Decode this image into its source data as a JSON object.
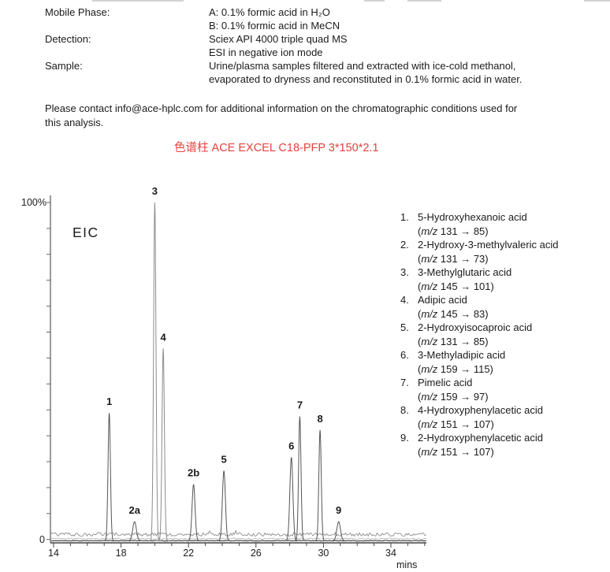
{
  "specs": {
    "rows": [
      {
        "label": "Mobile Phase:",
        "line1": "A: 0.1% formic acid in H₂O",
        "line2": "B: 0.1% formic acid in MeCN"
      },
      {
        "label": "Detection:",
        "line1": "Sciex API 4000 triple quad MS",
        "line2": "ESI in negative ion mode"
      },
      {
        "label": "Sample:",
        "line1": "Urine/plasma samples filtered and extracted with ice-cold methanol,",
        "line2": "evaporated to dryness and reconstituted in 0.1% formic acid in water."
      }
    ]
  },
  "contact_note": {
    "line1": "Please contact info@ace-hplc.com for additional information on the  chromatographic conditions used for",
    "line2": "this analysis."
  },
  "column_title": {
    "text": "色谱柱 ACE EXCEL C18-PFP 3*150*2.1",
    "color": "#e5433e"
  },
  "chart_data": {
    "type": "line",
    "title": "EIC",
    "xlabel": "mins",
    "y_top_label": "100%",
    "y_bottom_label": "0",
    "xlim": [
      14,
      36.1
    ],
    "ylim_percent": [
      0,
      100
    ],
    "x_major_ticks": [
      14,
      18,
      22,
      26,
      30,
      34
    ],
    "x_minor_tick_interval_mins": 1,
    "grid": false,
    "baseline_noise_percent": 2,
    "peaks": [
      {
        "label": "1",
        "rt_min": 17.3,
        "height_percent": 38
      },
      {
        "label": "2a",
        "rt_min": 18.8,
        "height_percent": 6
      },
      {
        "label": "3",
        "rt_min": 20.0,
        "height_percent": 100
      },
      {
        "label": "4",
        "rt_min": 20.5,
        "height_percent": 57
      },
      {
        "label": "2b",
        "rt_min": 22.3,
        "height_percent": 17
      },
      {
        "label": "5",
        "rt_min": 24.1,
        "height_percent": 21
      },
      {
        "label": "6",
        "rt_min": 28.1,
        "height_percent": 25
      },
      {
        "label": "7",
        "rt_min": 28.6,
        "height_percent": 37
      },
      {
        "label": "8",
        "rt_min": 29.8,
        "height_percent": 33
      },
      {
        "label": "9",
        "rt_min": 30.9,
        "height_percent": 6
      }
    ]
  },
  "legend": {
    "items": [
      {
        "num": "1.",
        "name": "5-Hydroxyhexanoic acid",
        "mz_open": "(",
        "mz_label": "m/z",
        "mz_rest": " 131 → 85)"
      },
      {
        "num": "2.",
        "name": "2-Hydroxy-3-methylvaleric acid",
        "mz_open": "(",
        "mz_label": "m/z",
        "mz_rest": " 131 → 73)"
      },
      {
        "num": "3.",
        "name": "3-Methylglutaric acid",
        "mz_open": "(",
        "mz_label": "m/z",
        "mz_rest": " 145 → 101)"
      },
      {
        "num": "4.",
        "name": "Adipic acid",
        "mz_open": "(",
        "mz_label": "m/z",
        "mz_rest": " 145 → 83)"
      },
      {
        "num": "5.",
        "name": "2-Hydroxyisocaproic acid",
        "mz_open": "(",
        "mz_label": "m/z",
        "mz_rest": " 131 → 85)"
      },
      {
        "num": "6.",
        "name": "3-Methyladipic acid",
        "mz_open": "(",
        "mz_label": "m/z",
        "mz_rest": " 159 → 115)"
      },
      {
        "num": "7.",
        "name": "Pimelic acid",
        "mz_open": "(",
        "mz_label": "m/z",
        "mz_rest": " 159 → 97)"
      },
      {
        "num": "8.",
        "name": "4-Hydroxyphenylacetic acid",
        "mz_open": "(",
        "mz_label": "m/z",
        "mz_rest": " 151 → 107)"
      },
      {
        "num": "9.",
        "name": "2-Hydroxyphenylacetic acid",
        "mz_open": "(",
        "mz_label": "m/z",
        "mz_rest": " 151 → 107)"
      }
    ]
  }
}
